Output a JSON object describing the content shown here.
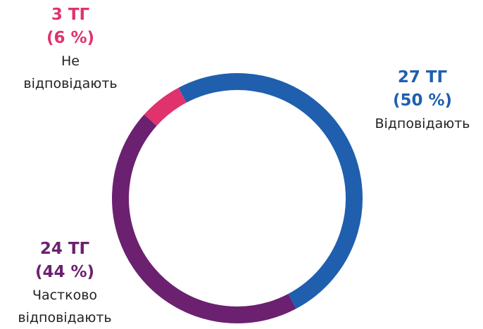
{
  "chart_data": {
    "type": "donut",
    "categories": [
      "Відповідають",
      "Частково відповідають",
      "Не відповідають"
    ],
    "values": [
      27,
      24,
      3
    ],
    "value_labels": [
      "27 ТГ",
      "24 ТГ",
      "3 ТГ"
    ],
    "percent_labels": [
      "(50 %)",
      "(44 %)",
      "(6 %)"
    ],
    "colors": [
      "#1f5fae",
      "#6b2170",
      "#e0336e"
    ]
  }
}
